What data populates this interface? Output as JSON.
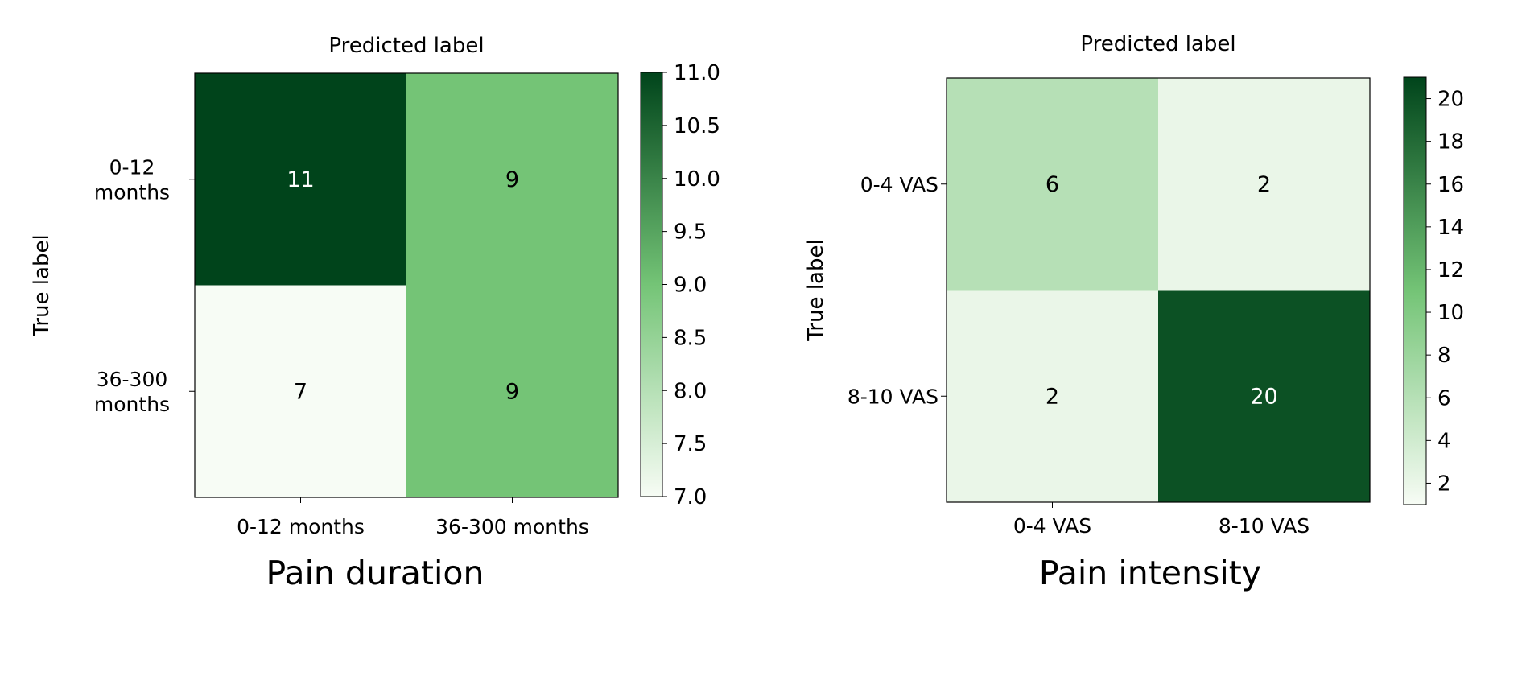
{
  "colormap": {
    "low": "#f7fcf5",
    "mid": "#74c476",
    "high": "#00441b"
  },
  "chart_data": [
    {
      "type": "heatmap",
      "title": "Pain duration",
      "xlabel": "Predicted label",
      "ylabel": "True label",
      "x_categories": [
        "0-12 months",
        "36-300 months"
      ],
      "y_categories": [
        [
          "0-12",
          "months"
        ],
        [
          "36-300",
          "months"
        ]
      ],
      "values": [
        [
          11,
          9
        ],
        [
          7,
          9
        ]
      ],
      "value_labels": [
        [
          "11",
          "9"
        ],
        [
          "7",
          "9"
        ]
      ],
      "vmin": 7.0,
      "vmax": 11.0,
      "colorbar_ticks": [
        "11.0",
        "10.5",
        "10.0",
        "9.5",
        "9.0",
        "8.5",
        "8.0",
        "7.5",
        "7.0"
      ],
      "colorbar_tick_values": [
        11.0,
        10.5,
        10.0,
        9.5,
        9.0,
        8.5,
        8.0,
        7.5,
        7.0
      ]
    },
    {
      "type": "heatmap",
      "title": "Pain intensity",
      "xlabel": "Predicted label",
      "ylabel": "True label",
      "x_categories": [
        "0-4 VAS",
        "8-10 VAS"
      ],
      "y_categories": [
        [
          "0-4 VAS"
        ],
        [
          "8-10 VAS"
        ]
      ],
      "values": [
        [
          6,
          2
        ],
        [
          2,
          20
        ]
      ],
      "value_labels": [
        [
          "6",
          "2"
        ],
        [
          "2",
          "20"
        ]
      ],
      "vmin": 1,
      "vmax": 21,
      "colorbar_ticks": [
        "20",
        "18",
        "16",
        "14",
        "12",
        "10",
        "8",
        "6",
        "4",
        "2"
      ],
      "colorbar_tick_values": [
        20,
        18,
        16,
        14,
        12,
        10,
        8,
        6,
        4,
        2
      ]
    }
  ]
}
